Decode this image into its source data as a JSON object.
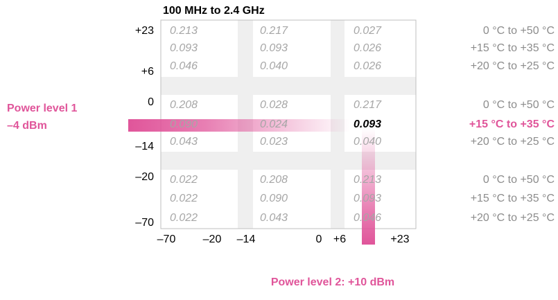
{
  "title": "100 MHz to 2.4 GHz",
  "y_labels": [
    "+23",
    "+6",
    "0",
    "–14",
    "–20",
    "–70"
  ],
  "x_labels": [
    "–70",
    "–20",
    "–14",
    "0",
    "+6",
    "+23"
  ],
  "table": {
    "rows": [
      [
        "0.213",
        "0.217",
        "0.027"
      ],
      [
        "0.093",
        "0.093",
        "0.026"
      ],
      [
        "0.046",
        "0.040",
        "0.026"
      ],
      [
        "0.208",
        "0.028",
        "0.217"
      ],
      [
        "0.090",
        "0.024",
        "0.093"
      ],
      [
        "0.043",
        "0.023",
        "0.040"
      ],
      [
        "0.022",
        "0.208",
        "0.213"
      ],
      [
        "0.022",
        "0.090",
        "0.093"
      ],
      [
        "0.022",
        "0.043",
        "0.046"
      ]
    ]
  },
  "temperatures": [
    "0 °C to +50 °C",
    "+15 °C to +35 °C",
    "+20 °C to +25 °C",
    "0 °C to +50 °C",
    "+15 °C to +35 °C",
    "+20 °C to +25 °C",
    "0 °C to +50 °C",
    "+15 °C to +35 °C",
    "+20 °C to +25 °C"
  ],
  "highlight": {
    "row": 4,
    "col": 2
  },
  "power_level_1": {
    "line1": "Power level 1",
    "line2": "–4 dBm"
  },
  "power_level_2": "Power level 2: +10 dBm"
}
